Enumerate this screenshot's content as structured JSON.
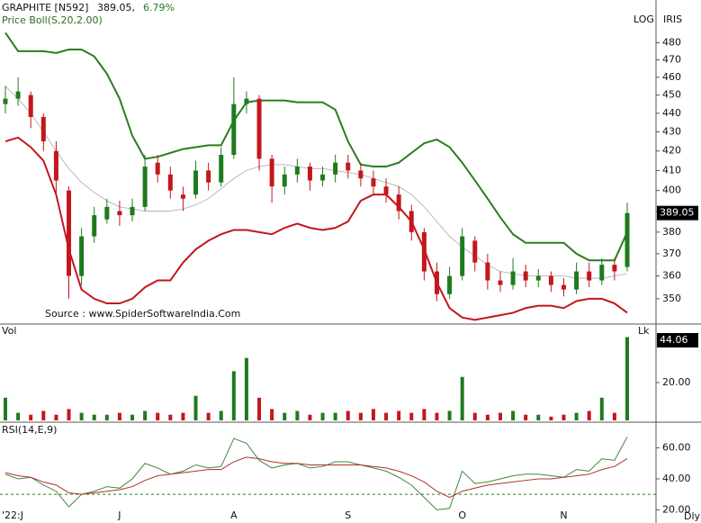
{
  "chart_data": [
    {
      "type": "candlestick",
      "title": "GRAPHITE [N592]",
      "price_text": "389.05,",
      "change": "6.79%",
      "indicator": "Price  Boll(S,20,2.00)",
      "source": "Source : www.SpiderSoftwareIndia.Com",
      "scale_labels": [
        "LOG",
        "IRIS"
      ],
      "log_scale": true,
      "categories": [
        "'22:J",
        null,
        null,
        null,
        null,
        null,
        null,
        null,
        null,
        "J",
        null,
        null,
        null,
        null,
        null,
        null,
        null,
        null,
        "A",
        null,
        null,
        null,
        null,
        null,
        null,
        null,
        null,
        "S",
        null,
        null,
        null,
        null,
        null,
        null,
        null,
        null,
        "O",
        null,
        null,
        null,
        null,
        null,
        null,
        null,
        "N",
        null,
        null,
        null,
        null,
        null
      ],
      "open": [
        445,
        448,
        450,
        438,
        420,
        400,
        360,
        378,
        386,
        390,
        388,
        392,
        414,
        408,
        398,
        398,
        410,
        404,
        418,
        445,
        448,
        416,
        402,
        408,
        412,
        405,
        408,
        414,
        410,
        406,
        402,
        398,
        390,
        380,
        362,
        352,
        360,
        376,
        366,
        358,
        356,
        362,
        358,
        360,
        356,
        354,
        362,
        358,
        365,
        364
      ],
      "high": [
        455,
        460,
        452,
        440,
        425,
        402,
        382,
        392,
        396,
        395,
        396,
        418,
        418,
        412,
        402,
        415,
        414,
        422,
        460,
        452,
        450,
        418,
        412,
        416,
        414,
        412,
        418,
        418,
        414,
        410,
        406,
        402,
        393,
        382,
        366,
        364,
        382,
        378,
        370,
        362,
        368,
        365,
        363,
        362,
        359,
        366,
        366,
        368,
        368,
        394
      ],
      "low": [
        440,
        444,
        432,
        420,
        398,
        350,
        356,
        375,
        384,
        383,
        385,
        390,
        404,
        396,
        390,
        396,
        400,
        402,
        416,
        440,
        410,
        394,
        398,
        404,
        400,
        402,
        404,
        406,
        402,
        398,
        394,
        386,
        376,
        358,
        349,
        350,
        358,
        362,
        354,
        353,
        354,
        355,
        355,
        353,
        351,
        352,
        355,
        356,
        358,
        362
      ],
      "close": [
        448,
        452,
        438,
        425,
        405,
        360,
        378,
        388,
        392,
        388,
        392,
        412,
        408,
        400,
        396,
        410,
        404,
        418,
        445,
        448,
        416,
        402,
        408,
        412,
        405,
        408,
        414,
        410,
        406,
        402,
        398,
        390,
        380,
        362,
        352,
        360,
        378,
        366,
        358,
        356,
        362,
        358,
        360,
        356,
        354,
        362,
        358,
        365,
        362,
        389.05
      ],
      "up_color": "#1f7a1f",
      "down_color": "#c4161c",
      "bands": [
        {
          "color": "#2a7d1e",
          "values": [
            486,
            475,
            475,
            475,
            474,
            476,
            476,
            472,
            462,
            448,
            428,
            416,
            417,
            419,
            421,
            422,
            423,
            423,
            436,
            446,
            447,
            447,
            447,
            446,
            446,
            446,
            442,
            425,
            413,
            412,
            412,
            414,
            419,
            424,
            426,
            422,
            414,
            405,
            396,
            387,
            379,
            375,
            375,
            375,
            375,
            370,
            367,
            367,
            367,
            380
          ]
        },
        {
          "color": "#a8a8a8",
          "values": [
            455,
            448,
            440,
            430,
            420,
            411,
            404,
            399,
            395,
            392,
            391,
            390,
            390,
            390,
            391,
            393,
            396,
            401,
            406,
            410,
            412,
            413,
            413,
            412,
            411,
            411,
            410,
            409,
            408,
            406,
            404,
            402,
            398,
            392,
            385,
            378,
            373,
            369,
            365,
            362,
            361,
            360,
            360,
            360,
            360,
            359,
            359,
            359,
            360,
            361
          ]
        },
        {
          "color": "#c3161c",
          "values": [
            425,
            427,
            422,
            415,
            398,
            372,
            354,
            350,
            348,
            348,
            350,
            355,
            358,
            358,
            366,
            372,
            376,
            379,
            381,
            381,
            380,
            379,
            382,
            384,
            382,
            381,
            382,
            385,
            395,
            398,
            398,
            392,
            385,
            372,
            357,
            346,
            342,
            341,
            342,
            343,
            344,
            346,
            347,
            347,
            346,
            349,
            350,
            350,
            348,
            344
          ]
        }
      ],
      "ylim": [
        340,
        506
      ],
      "yticks": [
        350,
        360,
        370,
        380,
        390,
        400,
        410,
        420,
        430,
        440,
        450,
        460,
        470,
        480
      ]
    },
    {
      "type": "bar",
      "title": "Vol",
      "unit": "Lk",
      "values": [
        12,
        4,
        3,
        5,
        3,
        6,
        4,
        3,
        3,
        4,
        3,
        5,
        4,
        3,
        4,
        13,
        4,
        5,
        26,
        33,
        12,
        6,
        4,
        5,
        3,
        4,
        4,
        5,
        4,
        6,
        4,
        5,
        4,
        6,
        4,
        5,
        23,
        4,
        3,
        4,
        5,
        3,
        3,
        2,
        3,
        4,
        5,
        12,
        4,
        44.06
      ],
      "ylim": [
        0,
        50
      ],
      "yticks": [
        {
          "value": 20,
          "label": "20.00"
        }
      ]
    },
    {
      "type": "line",
      "title": "RSI(14,E,9)",
      "period": "Dly",
      "series": [
        {
          "color": "#3c8a3c",
          "values": [
            43,
            40,
            41,
            36,
            32,
            22,
            30,
            32,
            35,
            34,
            40,
            50,
            47,
            43,
            45,
            49,
            47,
            48,
            66,
            63,
            52,
            47,
            49,
            50,
            47,
            48,
            51,
            51,
            49,
            47,
            45,
            41,
            36,
            28,
            20,
            21,
            45,
            37,
            38,
            40,
            42,
            43,
            43,
            42,
            41,
            46,
            45,
            53,
            52,
            67
          ]
        },
        {
          "color": "#b0322a",
          "values": [
            44,
            42,
            41,
            38,
            36,
            31,
            30,
            31,
            32,
            33,
            35,
            39,
            42,
            43,
            44,
            45,
            46,
            46,
            51,
            54,
            53,
            51,
            50,
            50,
            49,
            49,
            49,
            49,
            49,
            48,
            47,
            45,
            42,
            38,
            32,
            28,
            32,
            34,
            36,
            37,
            38,
            39,
            40,
            40,
            41,
            42,
            43,
            46,
            48,
            53
          ]
        }
      ],
      "hline": 30,
      "ylim": [
        15,
        76
      ],
      "yticks": [
        {
          "value": 20,
          "label": "20.00"
        },
        {
          "value": 40,
          "label": "40.00"
        },
        {
          "value": 60,
          "label": "60.00"
        }
      ]
    }
  ]
}
